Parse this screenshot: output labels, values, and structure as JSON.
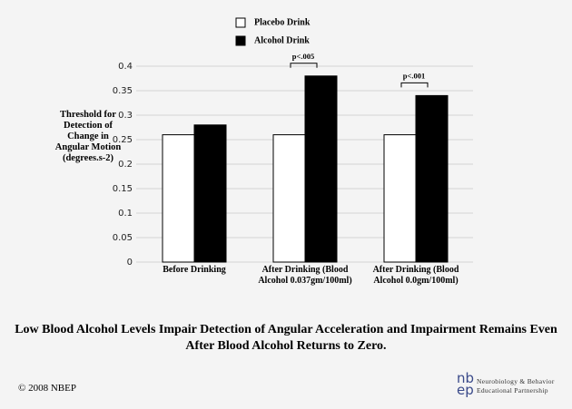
{
  "chart_data": {
    "type": "bar",
    "y_label": "Threshold for Detection of Change in Angular Motion (degrees.s-2)",
    "categories": [
      "Before Drinking",
      "After Drinking (Blood Alcohol 0.037gm/100ml)",
      "After Drinking (Blood Alcohol 0.0gm/100ml)"
    ],
    "series": [
      {
        "name": "Placebo Drink",
        "color": "#ffffff",
        "values": [
          0.26,
          0.26,
          0.26
        ]
      },
      {
        "name": "Alcohol Drink",
        "color": "#000000",
        "values": [
          0.28,
          0.38,
          0.34
        ]
      }
    ],
    "significance": [
      null,
      "p<.005",
      "p<.001"
    ],
    "ylim": [
      0,
      0.4
    ],
    "yticks": [
      0,
      0.05,
      0.1,
      0.15,
      0.2,
      0.25,
      0.3,
      0.35,
      0.4
    ],
    "grid": true,
    "title": "Low Blood Alcohol Levels Impair Detection of Angular Acceleration and Impairment Remains Even After Blood Alcohol Returns to Zero."
  },
  "footer": {
    "copyright": "© 2008 NBEP",
    "logo_top": "nb",
    "logo_bottom": "ep",
    "organization": [
      "Neurobiology & Behavior",
      "Educational Partnership"
    ]
  }
}
